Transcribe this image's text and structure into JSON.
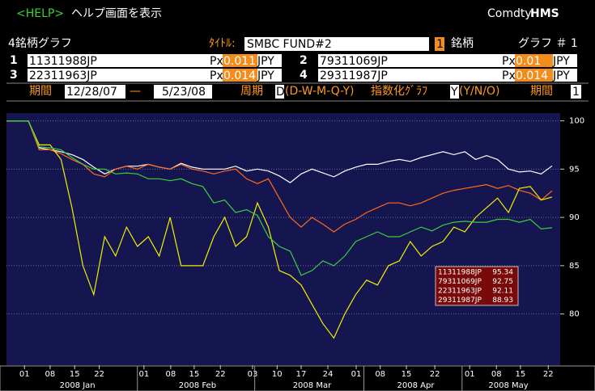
{
  "header": {
    "help": "<HELP>",
    "help_text": "ヘルプ画面を表示",
    "brand": "Comdty",
    "brand_bold": "HMS"
  },
  "form": {
    "title_label": "4銘柄グラフ",
    "title_field_label": "ﾀｲﾄﾙ:",
    "title_field": "SMBC FUND#2",
    "page": "1",
    "page_label": "銘柄",
    "graph_label": "グラフ ＃ 1"
  },
  "securities": [
    {
      "number": "1",
      "ticker": "11311988JP",
      "px_label": "Px",
      "px": "0.011",
      "currency": "JPY"
    },
    {
      "number": "2",
      "ticker": "79311069JP",
      "px_label": "Px",
      "px": "0.01",
      "currency": "JPY"
    },
    {
      "number": "3",
      "ticker": "22311963JP",
      "px_label": "Px",
      "px": "0.014",
      "currency": "JPY"
    },
    {
      "number": "4",
      "ticker": "29311987JP",
      "px_label": "Px",
      "px": "0.014",
      "currency": "JPY"
    }
  ],
  "period": {
    "label": "期間",
    "start": "12/28/07",
    "dash": "—",
    "end": "5/23/08",
    "freq_label": "周期",
    "freq": "D",
    "freq_options": "(D-W-M-Q-Y)",
    "index_label": "指数化ｸﾞﾗﾌ",
    "index": "Y",
    "index_options": "(Y/N/O)",
    "period2_label": "期間",
    "period2": "1"
  },
  "chart_data": {
    "type": "line",
    "xlim": [
      0,
      50
    ],
    "ylim": [
      74.7,
      100.8
    ],
    "yticks": [
      100,
      95,
      90,
      85,
      80
    ],
    "grid": true,
    "xticks": [
      {
        "value": 1.65,
        "label": "01"
      },
      {
        "value": 4,
        "label": "08"
      },
      {
        "value": 6.25,
        "label": "15"
      },
      {
        "value": 8.5,
        "label": "22"
      },
      {
        "value": 12.6,
        "label": "01"
      },
      {
        "value": 15.05,
        "label": "08"
      },
      {
        "value": 17.2,
        "label": "15"
      },
      {
        "value": 19.6,
        "label": "22"
      },
      {
        "value": 22.55,
        "label": "03"
      },
      {
        "value": 24.8,
        "label": "10"
      },
      {
        "value": 27,
        "label": "17"
      },
      {
        "value": 29.45,
        "label": "24"
      },
      {
        "value": 32.05,
        "label": "01"
      },
      {
        "value": 34.25,
        "label": "08"
      },
      {
        "value": 36.65,
        "label": "15"
      },
      {
        "value": 39.25,
        "label": "22"
      },
      {
        "value": 42.45,
        "label": "01"
      },
      {
        "value": 44.9,
        "label": "08"
      },
      {
        "value": 47.1,
        "label": "15"
      },
      {
        "value": 49.65,
        "label": "22"
      }
    ],
    "months": [
      {
        "value": 6.5,
        "label": "2008 Jan"
      },
      {
        "value": 17.5,
        "label": "2008 Feb"
      },
      {
        "value": 28,
        "label": "2008 Mar"
      },
      {
        "value": 37.5,
        "label": "2008 Apr"
      },
      {
        "value": 46,
        "label": "2008 May"
      }
    ],
    "series": [
      {
        "name": "11311988JP",
        "color": "#ffffff",
        "values": [
          100,
          100,
          100,
          97.2,
          97,
          96.8,
          96.5,
          96,
          95.2,
          94.5,
          95,
          95.3,
          95.3,
          95.5,
          95.2,
          95,
          95.6,
          95.2,
          95,
          95,
          95,
          95.3,
          94.8,
          95,
          94.8,
          94.3,
          93.6,
          94.5,
          95,
          94.6,
          94.2,
          94.8,
          95.2,
          95.5,
          95.5,
          95.8,
          96,
          95.8,
          96.2,
          96.5,
          96.8,
          96.5,
          96.8,
          96,
          96.4,
          96,
          95,
          94.7,
          94.8,
          94.5,
          95.34
        ]
      },
      {
        "name": "79311069JP",
        "color": "#ff6a1a",
        "values": [
          100,
          100,
          100,
          97,
          97,
          96.6,
          96,
          95.5,
          94.5,
          94.2,
          95,
          95.3,
          95,
          95.5,
          95.2,
          95,
          95.5,
          95,
          94.8,
          94.5,
          94.8,
          95,
          94,
          93.5,
          94,
          92,
          90,
          89,
          90,
          89.3,
          88.5,
          89.3,
          89.8,
          90.5,
          91,
          91.5,
          91.5,
          91.2,
          91.5,
          92,
          92.5,
          92.8,
          93,
          93.2,
          93.4,
          93,
          93.3,
          92.8,
          92.5,
          91.8,
          92.75
        ]
      },
      {
        "name": "22311963JP",
        "color": "#f0f000",
        "values": [
          100,
          100,
          100,
          97.5,
          97.5,
          96,
          91,
          85,
          82,
          88,
          86,
          89,
          87,
          88,
          86,
          90,
          85,
          85,
          85,
          88,
          90,
          87,
          88,
          91.5,
          89,
          84.5,
          84,
          83,
          81,
          79,
          77.5,
          80,
          82,
          83.5,
          83,
          85,
          85.5,
          87.5,
          86,
          87,
          87.5,
          89,
          88.5,
          90,
          91,
          92,
          90.5,
          93,
          93.2,
          91.8,
          92.11
        ]
      },
      {
        "name": "29311987JP",
        "color": "#3ccf3c",
        "values": [
          100,
          100,
          100,
          97.3,
          97.2,
          97,
          96.2,
          95.5,
          95,
          95,
          94.5,
          94.6,
          94.5,
          94,
          94,
          93.8,
          94,
          93.5,
          93.2,
          91.5,
          91.8,
          90.5,
          90.8,
          90.2,
          88,
          87,
          86.5,
          84,
          84.5,
          85.5,
          85,
          86,
          87.5,
          88,
          88.5,
          88,
          88,
          88.5,
          89,
          88.6,
          89.2,
          89.5,
          89.6,
          89.5,
          89.5,
          89.8,
          89.8,
          89.5,
          89.8,
          88.8,
          88.93
        ]
      }
    ]
  }
}
